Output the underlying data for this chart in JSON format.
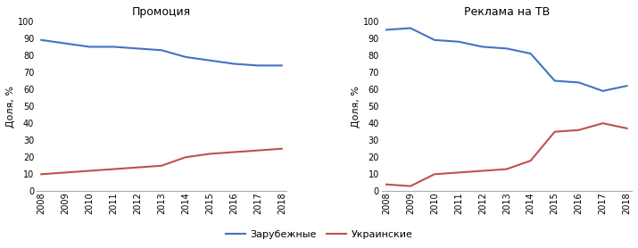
{
  "years": [
    2008,
    2009,
    2010,
    2011,
    2012,
    2013,
    2014,
    2015,
    2016,
    2017,
    2018
  ],
  "promo_zarub": [
    89,
    87,
    85,
    85,
    84,
    83,
    79,
    77,
    75,
    74,
    74
  ],
  "promo_ukr": [
    10,
    11,
    12,
    13,
    14,
    15,
    20,
    22,
    23,
    24,
    25
  ],
  "tv_zarub": [
    95,
    96,
    89,
    88,
    85,
    84,
    81,
    65,
    64,
    59,
    62
  ],
  "tv_ukr": [
    4,
    3,
    10,
    11,
    12,
    13,
    18,
    35,
    36,
    40,
    37
  ],
  "title_left": "Промоция",
  "title_right": "Реклама на ТВ",
  "ylabel": "Доля, %",
  "ylim": [
    0,
    100
  ],
  "yticks": [
    0,
    10,
    20,
    30,
    40,
    50,
    60,
    70,
    80,
    90,
    100
  ],
  "color_zarub": "#4472C4",
  "color_ukr": "#C0504D",
  "legend_zarub": "Зарубежные",
  "legend_ukr": "Украинские",
  "bg_color": "#FFFFFF",
  "line_width": 1.5,
  "spine_color": "#AAAAAA",
  "tick_label_fontsize": 7,
  "title_fontsize": 9,
  "ylabel_fontsize": 8,
  "legend_fontsize": 8
}
